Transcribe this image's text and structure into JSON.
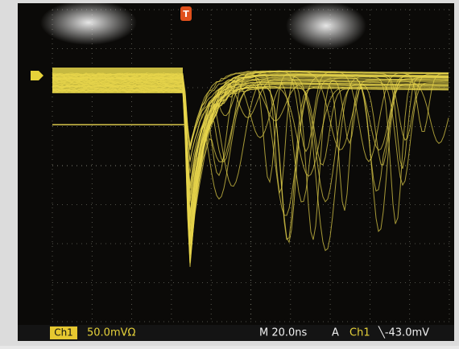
{
  "trigger_marker": "T",
  "status_bar": {
    "channel": "Ch1",
    "scale": "50.0mVΩ",
    "timebase": "M 20.0ns",
    "mode": "A",
    "trigger_channel": "Ch1",
    "trigger_level": "╲-43.0mV"
  }
}
